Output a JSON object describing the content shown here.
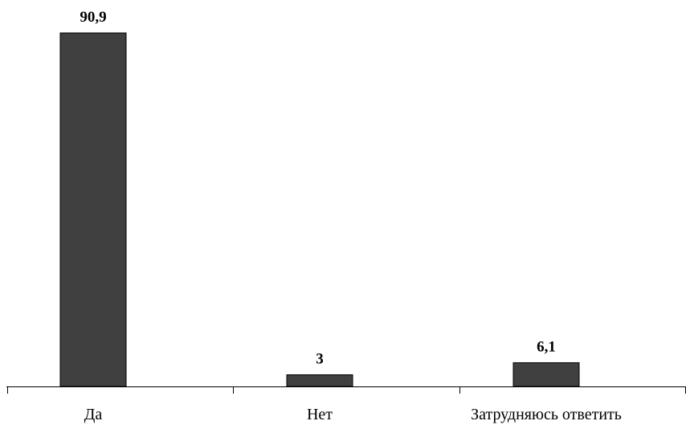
{
  "chart_data": {
    "type": "bar",
    "categories": [
      "Да",
      "Нет",
      "Затрудняюсь ответить"
    ],
    "values": [
      90.9,
      3,
      6.1
    ],
    "value_labels": [
      "90,9",
      "3",
      "6,1"
    ],
    "title": "",
    "xlabel": "",
    "ylabel": "",
    "ylim": [
      0,
      90.9
    ],
    "grid": false,
    "legend": "none",
    "colors": {
      "bar_fill": "#404040",
      "bar_stroke": "#000000",
      "axis": "#000000",
      "text": "#000000"
    }
  }
}
